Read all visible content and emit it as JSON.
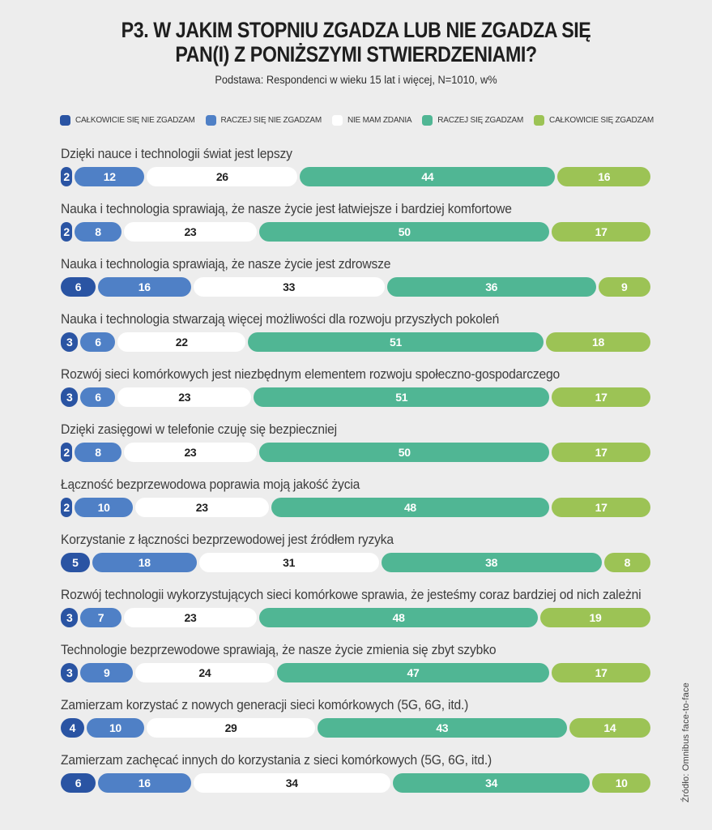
{
  "header": {
    "title_line1": "P3. W JAKIM STOPNIU ZGADZA LUB NIE ZGADZA SIĘ",
    "title_line2": "PAN(I) Z PONIŻSZYMI STWIERDZENIAMI?",
    "subtitle": "Podstawa: Respondenci w wieku 15 lat i więcej, N=1010, w%"
  },
  "source": "Źródło: Omnibus face-to-face",
  "colors": {
    "background": "#ededed",
    "strongly_disagree": "#2a54a3",
    "rather_disagree": "#4f80c6",
    "no_opinion": "#ffffff",
    "rather_agree": "#50b694",
    "strongly_agree": "#9cc355",
    "text_dark": "#1e1e1e",
    "label_gray": "#3d3d3d"
  },
  "chart_data": {
    "type": "bar",
    "variant": "stacked-horizontal",
    "unit": "%",
    "axis_range": [
      0,
      100
    ],
    "grid": false,
    "legend_position": "top",
    "categories": [
      "Dzięki nauce i technologii świat jest lepszy",
      "Nauka i technologia sprawiają, że nasze życie jest łatwiejsze i bardziej komfortowe",
      "Nauka i technologia sprawiają, że nasze życie jest zdrowsze",
      "Nauka i technologia stwarzają więcej możliwości dla rozwoju przyszłych pokoleń",
      "Rozwój sieci komórkowych jest niezbędnym elementem rozwoju społeczno-gospodarczego",
      "Dzięki zasięgowi w telefonie czuję się bezpieczniej",
      "Łączność bezprzewodowa poprawia moją jakość życia",
      "Korzystanie z łączności bezprzewodowej jest źródłem ryzyka",
      "Rozwój technologii wykorzystujących sieci komórkowe sprawia, że jesteśmy coraz bardziej od nich zależni",
      "Technologie bezprzewodowe sprawiają, że nasze życie zmienia się zbyt szybko",
      "Zamierzam korzystać z nowych generacji sieci komórkowych (5G, 6G, itd.)",
      "Zamierzam zachęcać innych do korzystania z sieci komórkowych (5G, 6G, itd.)"
    ],
    "series": [
      {
        "name": "CAŁKOWICIE SIĘ NIE ZGADZAM",
        "color": "#2a54a3",
        "values": [
          2,
          2,
          6,
          3,
          3,
          2,
          2,
          5,
          3,
          3,
          4,
          6
        ]
      },
      {
        "name": "RACZEJ SIĘ NIE ZGADZAM",
        "color": "#4f80c6",
        "values": [
          12,
          8,
          16,
          6,
          6,
          8,
          10,
          18,
          7,
          9,
          10,
          16
        ]
      },
      {
        "name": "NIE MAM ZDANIA",
        "color": "#ffffff",
        "values": [
          26,
          23,
          33,
          22,
          23,
          23,
          23,
          31,
          23,
          24,
          29,
          34
        ]
      },
      {
        "name": "RACZEJ SIĘ ZGADZAM",
        "color": "#50b694",
        "values": [
          44,
          50,
          36,
          51,
          51,
          50,
          48,
          38,
          48,
          47,
          43,
          34
        ]
      },
      {
        "name": "CAŁKOWICIE SIĘ ZGADZAM",
        "color": "#9cc355",
        "values": [
          16,
          17,
          9,
          18,
          17,
          17,
          17,
          8,
          19,
          17,
          14,
          10
        ]
      }
    ]
  }
}
